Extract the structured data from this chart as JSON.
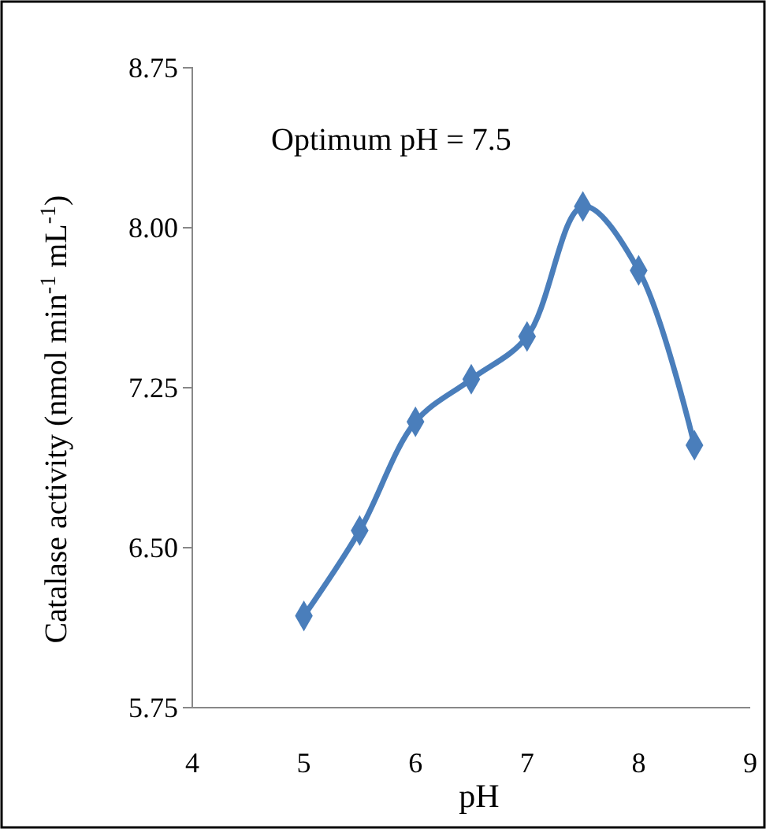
{
  "chart_data": {
    "type": "line",
    "xlabel": "pH",
    "ylabel": "Catalase activity (nmol min$^{-1}$ mL$^{-1}$)",
    "annotations": [
      "Optimum pH = 7.5"
    ],
    "x": [
      5,
      5.5,
      6,
      6.5,
      7,
      7.5,
      8,
      8.5
    ],
    "series": [
      {
        "color": "#4a7ebb",
        "values": [
          6.18,
          6.58,
          7.09,
          7.29,
          7.49,
          8.1,
          7.8,
          6.98
        ]
      }
    ],
    "xlim": [
      4,
      9
    ],
    "xticks": [
      4,
      5,
      6,
      7,
      8,
      9
    ],
    "ylim": [
      5.75,
      8.75
    ],
    "yticks": [
      {
        "value": 5.75,
        "label": "5.75"
      },
      {
        "value": 6.5,
        "label": "6.50"
      },
      {
        "value": 7.25,
        "label": "7.25"
      },
      {
        "value": 8,
        "label": "8.00"
      },
      {
        "value": 8.75,
        "label": "8.75"
      }
    ],
    "grid": false,
    "marker": "diamond",
    "line_style": "solid"
  }
}
